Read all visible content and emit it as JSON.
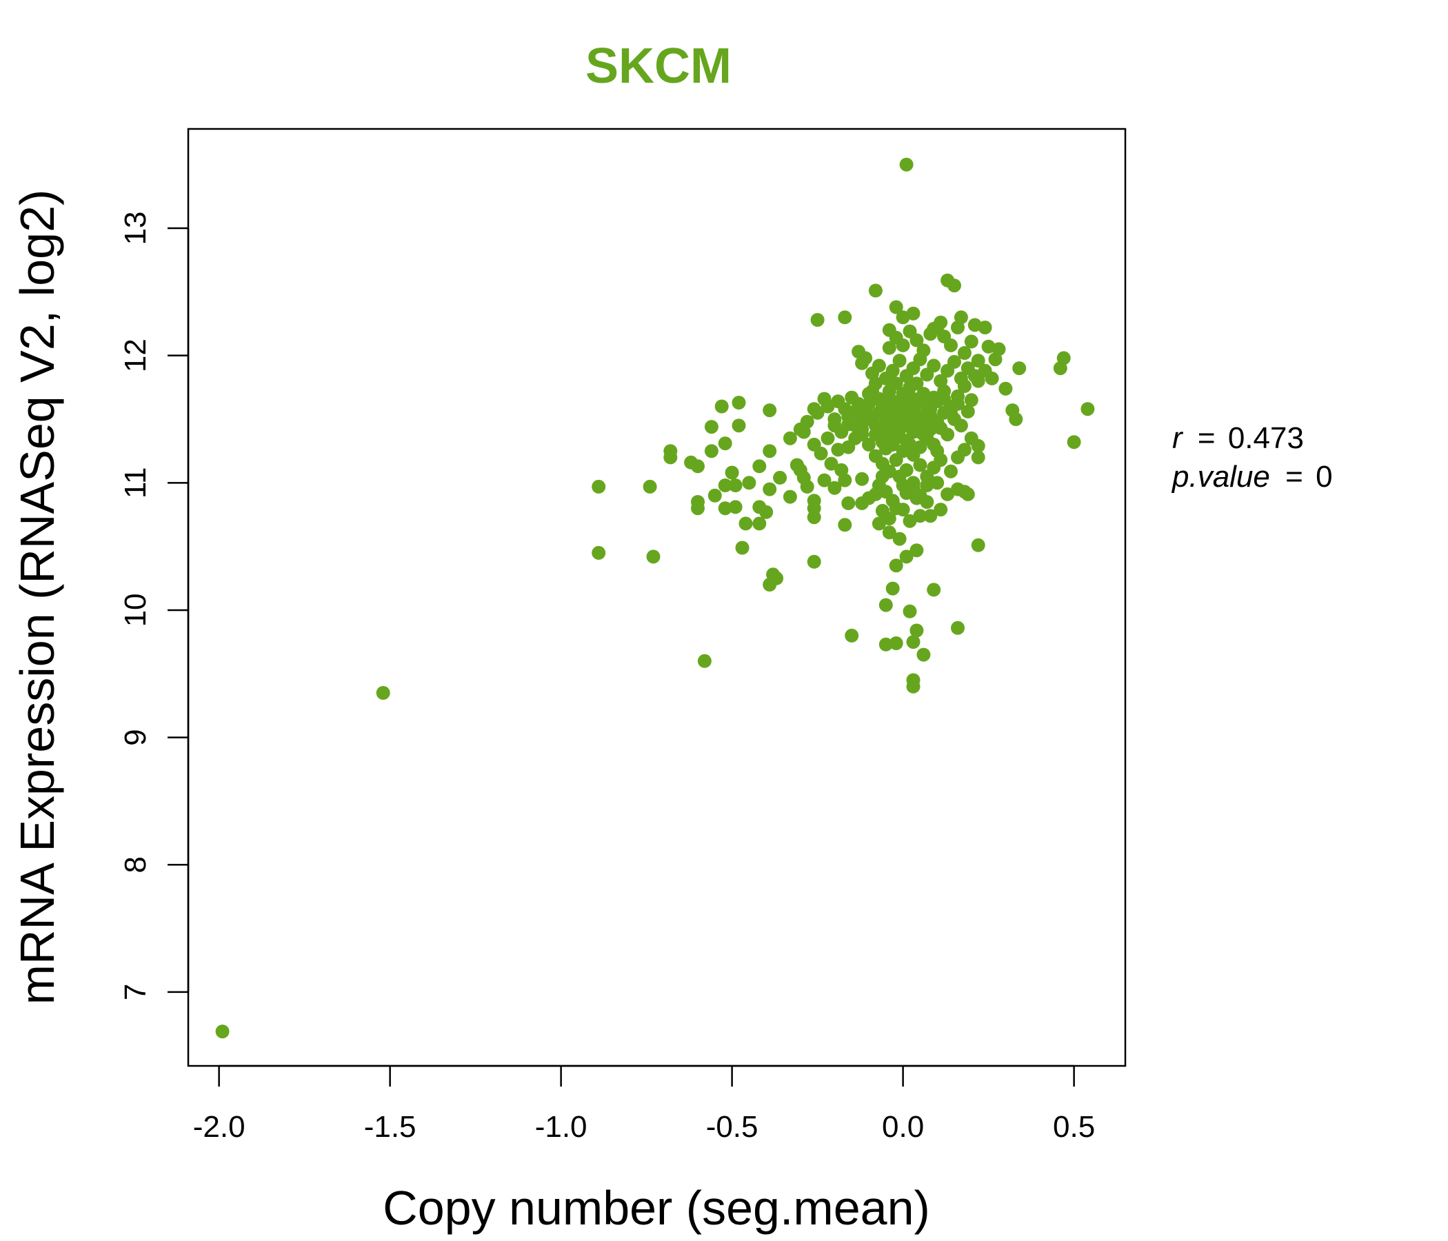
{
  "chart_data": {
    "type": "scatter",
    "title": "SKCM",
    "title_color": "#66a61e",
    "point_color": "#66a61e",
    "xlabel": "Copy number (seg.mean)",
    "ylabel": "mRNA Expression (RNASeq V2, log2)",
    "xlim": [
      -2.09,
      0.65
    ],
    "ylim": [
      6.42,
      13.78
    ],
    "xticks": [
      -2.0,
      -1.5,
      -1.0,
      -0.5,
      0.0,
      0.5
    ],
    "xtick_labels": [
      "-2.0",
      "-1.5",
      "-1.0",
      "-0.5",
      "0.0",
      "0.5"
    ],
    "yticks": [
      7,
      8,
      9,
      10,
      11,
      12,
      13
    ],
    "ytick_labels": [
      "7",
      "8",
      "9",
      "10",
      "11",
      "12",
      "13"
    ],
    "grid": false,
    "stats": {
      "r_label": "r",
      "r_value": "0.473",
      "p_label": "p.value",
      "p_value": "0",
      "equals": "="
    },
    "points": [
      [
        -1.99,
        6.69
      ],
      [
        -1.52,
        9.35
      ],
      [
        -0.58,
        9.6
      ],
      [
        -0.89,
        10.45
      ],
      [
        -0.73,
        10.42
      ],
      [
        -0.89,
        10.97
      ],
      [
        -0.74,
        10.97
      ],
      [
        0.01,
        13.5
      ],
      [
        0.13,
        12.59
      ],
      [
        0.15,
        12.55
      ],
      [
        -0.08,
        12.51
      ],
      [
        -0.25,
        12.28
      ],
      [
        -0.17,
        12.3
      ],
      [
        0.47,
        11.98
      ],
      [
        0.46,
        11.9
      ],
      [
        0.54,
        11.58
      ],
      [
        0.5,
        11.32
      ],
      [
        0.34,
        11.9
      ],
      [
        0.32,
        11.57
      ],
      [
        0.33,
        11.5
      ],
      [
        0.3,
        11.74
      ],
      [
        0.28,
        12.05
      ],
      [
        0.27,
        11.97
      ],
      [
        0.24,
        12.22
      ],
      [
        0.22,
        11.8
      ],
      [
        0.22,
        11.29
      ],
      [
        0.22,
        11.2
      ],
      [
        0.22,
        10.51
      ],
      [
        0.19,
        11.56
      ],
      [
        0.19,
        10.91
      ],
      [
        0.16,
        9.86
      ],
      [
        0.09,
        10.16
      ],
      [
        0.06,
        9.65
      ],
      [
        0.04,
        9.84
      ],
      [
        0.03,
        9.75
      ],
      [
        0.03,
        9.45
      ],
      [
        0.03,
        9.4
      ],
      [
        0.02,
        9.99
      ],
      [
        -0.02,
        9.74
      ],
      [
        -0.05,
        9.73
      ],
      [
        -0.05,
        10.04
      ],
      [
        -0.03,
        10.17
      ],
      [
        -0.15,
        9.8
      ],
      [
        -0.02,
        10.35
      ],
      [
        0.01,
        10.42
      ],
      [
        0.04,
        10.47
      ],
      [
        -0.01,
        10.56
      ],
      [
        -0.04,
        10.61
      ],
      [
        -0.07,
        10.68
      ],
      [
        -0.17,
        10.67
      ],
      [
        -0.26,
        10.38
      ],
      [
        -0.37,
        10.25
      ],
      [
        -0.39,
        10.2
      ],
      [
        -0.38,
        10.28
      ],
      [
        -0.47,
        10.49
      ],
      [
        -0.46,
        10.68
      ],
      [
        -0.42,
        10.68
      ],
      [
        -0.42,
        10.81
      ],
      [
        -0.4,
        10.77
      ],
      [
        -0.52,
        10.8
      ],
      [
        -0.49,
        10.81
      ],
      [
        -0.55,
        10.9
      ],
      [
        -0.6,
        10.8
      ],
      [
        -0.6,
        10.85
      ],
      [
        -0.52,
        10.98
      ],
      [
        -0.49,
        10.98
      ],
      [
        -0.5,
        11.08
      ],
      [
        -0.45,
        11.0
      ],
      [
        -0.42,
        11.13
      ],
      [
        -0.39,
        10.95
      ],
      [
        -0.36,
        11.04
      ],
      [
        -0.39,
        11.25
      ],
      [
        -0.56,
        11.25
      ],
      [
        -0.6,
        11.13
      ],
      [
        -0.62,
        11.16
      ],
      [
        -0.68,
        11.2
      ],
      [
        -0.68,
        11.25
      ],
      [
        -0.56,
        11.44
      ],
      [
        -0.52,
        11.31
      ],
      [
        -0.48,
        11.45
      ],
      [
        -0.53,
        11.6
      ],
      [
        -0.48,
        11.63
      ],
      [
        -0.39,
        11.57
      ],
      [
        -0.33,
        11.35
      ],
      [
        -0.31,
        11.14
      ],
      [
        -0.3,
        11.1
      ],
      [
        -0.29,
        11.04
      ],
      [
        -0.28,
        10.97
      ],
      [
        -0.33,
        10.89
      ],
      [
        -0.26,
        10.86
      ],
      [
        -0.26,
        10.8
      ],
      [
        -0.26,
        10.73
      ],
      [
        -0.23,
        11.02
      ],
      [
        -0.2,
        10.96
      ],
      [
        -0.17,
        11.02
      ],
      [
        -0.16,
        10.84
      ],
      [
        -0.12,
        10.84
      ],
      [
        -0.1,
        10.88
      ],
      [
        -0.07,
        10.98
      ],
      [
        -0.05,
        10.93
      ],
      [
        -0.03,
        10.86
      ],
      [
        0.0,
        10.79
      ],
      [
        0.02,
        10.7
      ],
      [
        0.05,
        10.74
      ],
      [
        0.08,
        10.74
      ],
      [
        0.11,
        10.79
      ],
      [
        0.13,
        10.91
      ],
      [
        0.16,
        10.95
      ],
      [
        0.18,
        10.93
      ],
      [
        0.1,
        11.0
      ],
      [
        0.07,
        10.98
      ],
      [
        0.04,
        10.88
      ],
      [
        0.03,
        10.96
      ],
      [
        0.0,
        10.98
      ],
      [
        -0.06,
        11.05
      ],
      [
        -0.12,
        11.03
      ],
      [
        -0.18,
        11.1
      ],
      [
        -0.21,
        11.15
      ],
      [
        -0.24,
        11.23
      ],
      [
        -0.26,
        11.3
      ],
      [
        -0.22,
        11.35
      ],
      [
        -0.19,
        11.26
      ],
      [
        -0.29,
        11.4
      ],
      [
        -0.28,
        11.48
      ],
      [
        -0.25,
        11.55
      ],
      [
        -0.22,
        11.6
      ],
      [
        -0.2,
        11.5
      ],
      [
        -0.16,
        11.52
      ],
      [
        -0.14,
        11.45
      ],
      [
        -0.12,
        11.38
      ],
      [
        -0.1,
        11.3
      ],
      [
        -0.08,
        11.21
      ],
      [
        -0.06,
        11.15
      ],
      [
        -0.04,
        11.09
      ],
      [
        -0.02,
        11.18
      ],
      [
        0.01,
        11.1
      ],
      [
        0.03,
        11.22
      ],
      [
        0.05,
        11.14
      ],
      [
        0.07,
        11.05
      ],
      [
        0.09,
        11.12
      ],
      [
        0.11,
        11.18
      ],
      [
        0.14,
        11.09
      ],
      [
        0.16,
        11.2
      ],
      [
        0.18,
        11.26
      ],
      [
        0.2,
        11.35
      ],
      [
        0.17,
        11.45
      ],
      [
        0.15,
        11.5
      ],
      [
        0.13,
        11.38
      ],
      [
        0.11,
        11.43
      ],
      [
        0.09,
        11.3
      ],
      [
        0.07,
        11.35
      ],
      [
        0.05,
        11.28
      ],
      [
        0.03,
        11.4
      ],
      [
        0.01,
        11.33
      ],
      [
        -0.01,
        11.42
      ],
      [
        -0.03,
        11.3
      ],
      [
        -0.05,
        11.37
      ],
      [
        -0.07,
        11.44
      ],
      [
        -0.09,
        11.52
      ],
      [
        -0.11,
        11.57
      ],
      [
        -0.13,
        11.62
      ],
      [
        -0.15,
        11.67
      ],
      [
        -0.17,
        11.58
      ],
      [
        -0.19,
        11.64
      ],
      [
        -0.1,
        11.7
      ],
      [
        -0.08,
        11.78
      ],
      [
        -0.06,
        11.65
      ],
      [
        -0.04,
        11.72
      ],
      [
        -0.02,
        11.6
      ],
      [
        0.0,
        11.68
      ],
      [
        0.02,
        11.55
      ],
      [
        0.04,
        11.62
      ],
      [
        0.06,
        11.7
      ],
      [
        0.08,
        11.58
      ],
      [
        0.1,
        11.64
      ],
      [
        0.12,
        11.72
      ],
      [
        0.14,
        11.6
      ],
      [
        0.16,
        11.68
      ],
      [
        0.18,
        11.76
      ],
      [
        0.2,
        11.65
      ],
      [
        0.21,
        11.84
      ],
      [
        0.19,
        11.9
      ],
      [
        0.17,
        11.82
      ],
      [
        0.15,
        11.95
      ],
      [
        0.13,
        11.88
      ],
      [
        0.11,
        11.8
      ],
      [
        0.09,
        11.92
      ],
      [
        0.07,
        11.85
      ],
      [
        0.05,
        11.97
      ],
      [
        0.03,
        11.9
      ],
      [
        0.01,
        11.84
      ],
      [
        -0.01,
        11.96
      ],
      [
        -0.03,
        11.88
      ],
      [
        -0.05,
        11.82
      ],
      [
        -0.07,
        11.92
      ],
      [
        -0.09,
        11.86
      ],
      [
        -0.11,
        11.98
      ],
      [
        -0.13,
        12.03
      ],
      [
        -0.12,
        11.94
      ],
      [
        -0.04,
        12.06
      ],
      [
        -0.02,
        12.14
      ],
      [
        0.0,
        12.08
      ],
      [
        0.02,
        12.19
      ],
      [
        0.04,
        12.12
      ],
      [
        0.06,
        12.04
      ],
      [
        0.08,
        12.17
      ],
      [
        0.1,
        12.22
      ],
      [
        0.12,
        12.15
      ],
      [
        0.14,
        12.08
      ],
      [
        0.16,
        12.22
      ],
      [
        0.18,
        12.02
      ],
      [
        0.2,
        12.11
      ],
      [
        0.22,
        11.96
      ],
      [
        0.24,
        11.88
      ],
      [
        0.26,
        11.82
      ],
      [
        0.25,
        12.07
      ],
      [
        0.21,
        12.24
      ],
      [
        0.17,
        12.3
      ],
      [
        0.11,
        12.26
      ],
      [
        0.09,
        12.21
      ],
      [
        0.03,
        12.33
      ],
      [
        0.0,
        12.3
      ],
      [
        -0.02,
        12.38
      ],
      [
        -0.04,
        12.2
      ],
      [
        0.04,
        11.78
      ],
      [
        0.06,
        11.48
      ],
      [
        0.08,
        11.53
      ],
      [
        0.1,
        11.25
      ],
      [
        0.12,
        11.55
      ],
      [
        0.02,
        11.5
      ],
      [
        0.0,
        11.55
      ],
      [
        -0.02,
        11.5
      ],
      [
        -0.04,
        11.55
      ],
      [
        -0.06,
        11.6
      ],
      [
        -0.08,
        11.45
      ],
      [
        -0.1,
        11.5
      ],
      [
        -0.12,
        11.42
      ],
      [
        -0.14,
        11.35
      ],
      [
        -0.16,
        11.28
      ],
      [
        -0.18,
        11.4
      ],
      [
        -0.2,
        11.45
      ],
      [
        -0.23,
        11.66
      ],
      [
        -0.26,
        11.58
      ],
      [
        -0.3,
        11.42
      ],
      [
        0.0,
        11.25
      ],
      [
        0.02,
        11.3
      ],
      [
        -0.01,
        11.05
      ],
      [
        0.01,
        10.92
      ],
      [
        0.03,
        11.0
      ],
      [
        0.05,
        10.9
      ],
      [
        0.07,
        10.85
      ],
      [
        -0.02,
        10.8
      ],
      [
        -0.04,
        10.72
      ],
      [
        -0.06,
        10.78
      ],
      [
        -0.08,
        10.91
      ],
      [
        0.0,
        11.7
      ],
      [
        0.01,
        11.62
      ],
      [
        -0.01,
        11.58
      ],
      [
        0.03,
        11.66
      ],
      [
        -0.03,
        11.64
      ],
      [
        0.05,
        11.52
      ],
      [
        -0.05,
        11.47
      ],
      [
        0.07,
        11.6
      ],
      [
        -0.07,
        11.55
      ],
      [
        0.02,
        11.75
      ],
      [
        -0.02,
        11.78
      ],
      [
        0.04,
        11.45
      ],
      [
        -0.04,
        11.4
      ],
      [
        0.06,
        11.38
      ],
      [
        -0.06,
        11.32
      ],
      [
        0.08,
        11.42
      ],
      [
        -0.08,
        11.38
      ],
      [
        0.1,
        11.48
      ],
      [
        -0.1,
        11.62
      ],
      [
        0.12,
        11.66
      ],
      [
        -0.12,
        11.5
      ],
      [
        0.14,
        11.55
      ],
      [
        -0.14,
        11.56
      ],
      [
        0.16,
        11.62
      ],
      [
        -0.16,
        11.46
      ],
      [
        0.01,
        11.45
      ],
      [
        -0.01,
        11.36
      ],
      [
        0.03,
        11.58
      ],
      [
        -0.03,
        11.48
      ],
      [
        0.05,
        11.4
      ],
      [
        -0.05,
        11.27
      ],
      [
        0.07,
        11.48
      ],
      [
        -0.07,
        11.66
      ],
      [
        0.09,
        11.67
      ],
      [
        -0.09,
        11.72
      ]
    ]
  }
}
